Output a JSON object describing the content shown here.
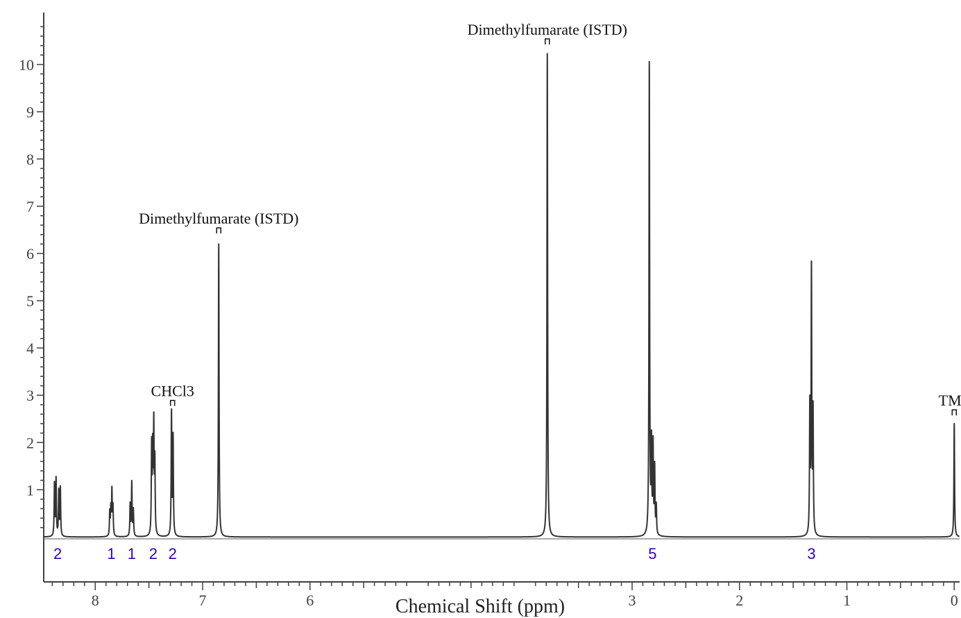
{
  "chart_data": {
    "type": "line",
    "title": "",
    "xlabel": "Chemical Shift (ppm)",
    "ylabel": "",
    "xlim": [
      8.48,
      -0.05
    ],
    "ylim": [
      -0.95,
      11.1
    ],
    "x_reversed": true,
    "grid": false,
    "x_ticks": [
      {
        "value": 8,
        "label": "8"
      },
      {
        "value": 7,
        "label": "7"
      },
      {
        "value": 6,
        "label": "6"
      },
      {
        "value": 3,
        "label": "3"
      },
      {
        "value": 2,
        "label": "2"
      },
      {
        "value": 1,
        "label": "1"
      },
      {
        "value": 0,
        "label": "0"
      }
    ],
    "y_ticks": [
      {
        "value": 1,
        "label": "1"
      },
      {
        "value": 2,
        "label": "2"
      },
      {
        "value": 3,
        "label": "3"
      },
      {
        "value": 4,
        "label": "4"
      },
      {
        "value": 5,
        "label": "5"
      },
      {
        "value": 6,
        "label": "6"
      },
      {
        "value": 7,
        "label": "7"
      },
      {
        "value": 8,
        "label": "8"
      },
      {
        "value": 9,
        "label": "9"
      },
      {
        "value": 10,
        "label": "10"
      }
    ],
    "peaks": [
      {
        "ppm": 8.38,
        "height": 1.1
      },
      {
        "ppm": 8.365,
        "height": 1.2
      },
      {
        "ppm": 8.34,
        "height": 0.95
      },
      {
        "ppm": 8.325,
        "height": 1.02
      },
      {
        "ppm": 7.865,
        "height": 0.5
      },
      {
        "ppm": 7.855,
        "height": 0.55
      },
      {
        "ppm": 7.845,
        "height": 0.93
      },
      {
        "ppm": 7.835,
        "height": 0.6
      },
      {
        "ppm": 7.675,
        "height": 0.67
      },
      {
        "ppm": 7.66,
        "height": 1.13
      },
      {
        "ppm": 7.645,
        "height": 0.55
      },
      {
        "ppm": 7.475,
        "height": 1.85
      },
      {
        "ppm": 7.465,
        "height": 1.7
      },
      {
        "ppm": 7.455,
        "height": 2.24
      },
      {
        "ppm": 7.445,
        "height": 1.5
      },
      {
        "ppm": 7.29,
        "height": 2.6
      },
      {
        "ppm": 7.275,
        "height": 2.08
      },
      {
        "ppm": 6.85,
        "height": 6.2
      },
      {
        "ppm": 3.79,
        "height": 10.23
      },
      {
        "ppm": 2.84,
        "height": 9.98
      },
      {
        "ppm": 2.82,
        "height": 1.85
      },
      {
        "ppm": 2.805,
        "height": 1.87
      },
      {
        "ppm": 2.79,
        "height": 1.4
      },
      {
        "ppm": 2.775,
        "height": 0.6
      },
      {
        "ppm": 1.345,
        "height": 2.68
      },
      {
        "ppm": 1.33,
        "height": 5.57
      },
      {
        "ppm": 1.315,
        "height": 2.56
      },
      {
        "ppm": 0.0,
        "height": 2.4
      }
    ],
    "annotations": [
      {
        "text": "Dimethylfumarate (ISTD)",
        "ppm": 3.79,
        "y": 10.6
      },
      {
        "text": "Dimethylfumarate (ISTD)",
        "ppm": 6.85,
        "y": 6.6
      },
      {
        "text": "CHCl3",
        "ppm": 7.28,
        "y": 2.95
      },
      {
        "text": "TMS",
        "ppm": 0.0,
        "y": 2.75
      }
    ],
    "integrals": [
      {
        "ppm": 8.35,
        "label": "2"
      },
      {
        "ppm": 7.85,
        "label": "1"
      },
      {
        "ppm": 7.66,
        "label": "1"
      },
      {
        "ppm": 7.46,
        "label": "2"
      },
      {
        "ppm": 7.28,
        "label": "2"
      },
      {
        "ppm": 2.81,
        "label": "5"
      },
      {
        "ppm": 1.33,
        "label": "3"
      }
    ],
    "colors": {
      "trace": "#333333",
      "axis": "#404040",
      "integral": "#3300bb"
    }
  }
}
